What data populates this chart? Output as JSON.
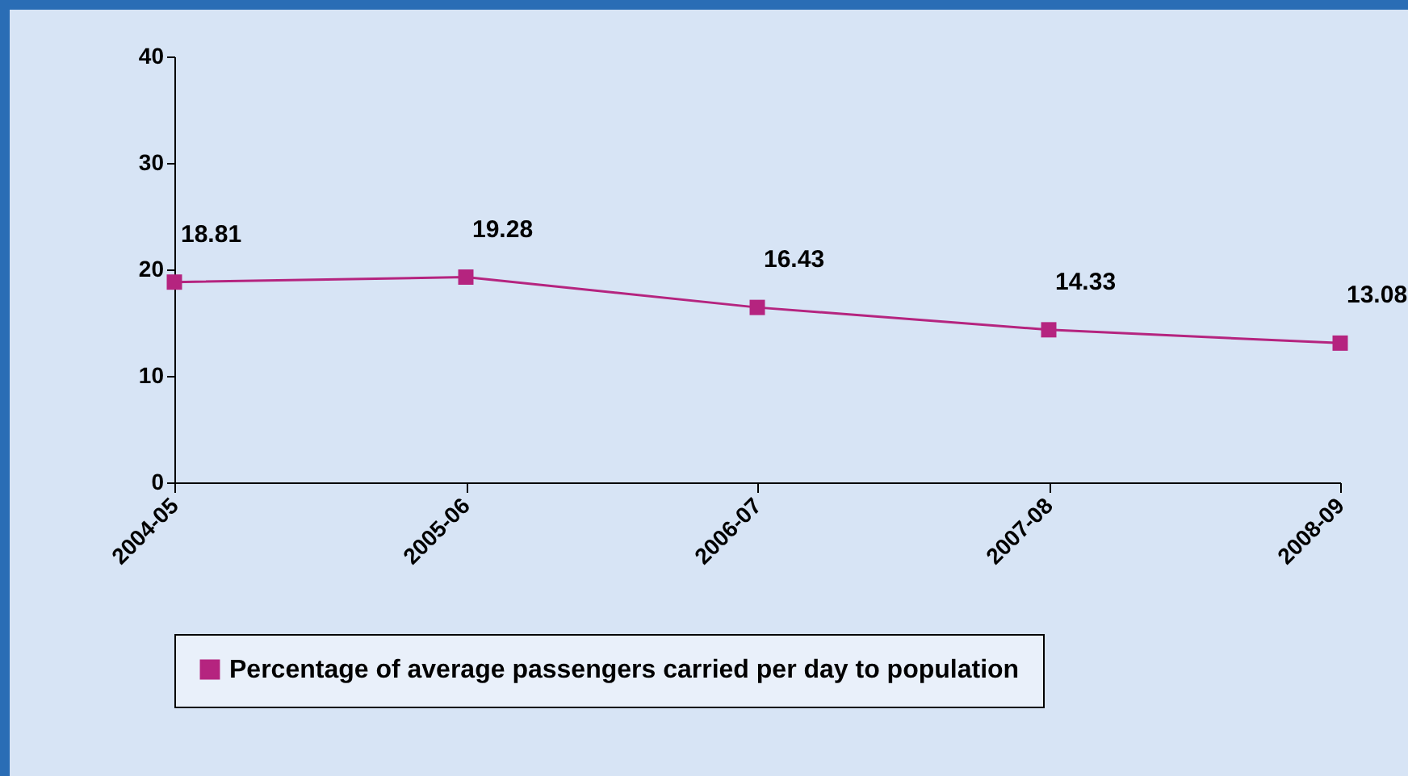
{
  "chart_data": {
    "type": "line",
    "categories": [
      "2004-05",
      "2005-06",
      "2006-07",
      "2007-08",
      "2008-09"
    ],
    "series": [
      {
        "name": "Percentage of average passengers carried per day to population",
        "color": "#b5247f",
        "values": [
          18.81,
          19.28,
          16.43,
          14.33,
          13.08
        ]
      }
    ],
    "ylim": [
      0,
      40
    ],
    "yticks": [
      0,
      10,
      20,
      30,
      40
    ],
    "grid": false,
    "legend": "bottom",
    "marker": "square",
    "line_style": "solid",
    "data_labels": true
  }
}
